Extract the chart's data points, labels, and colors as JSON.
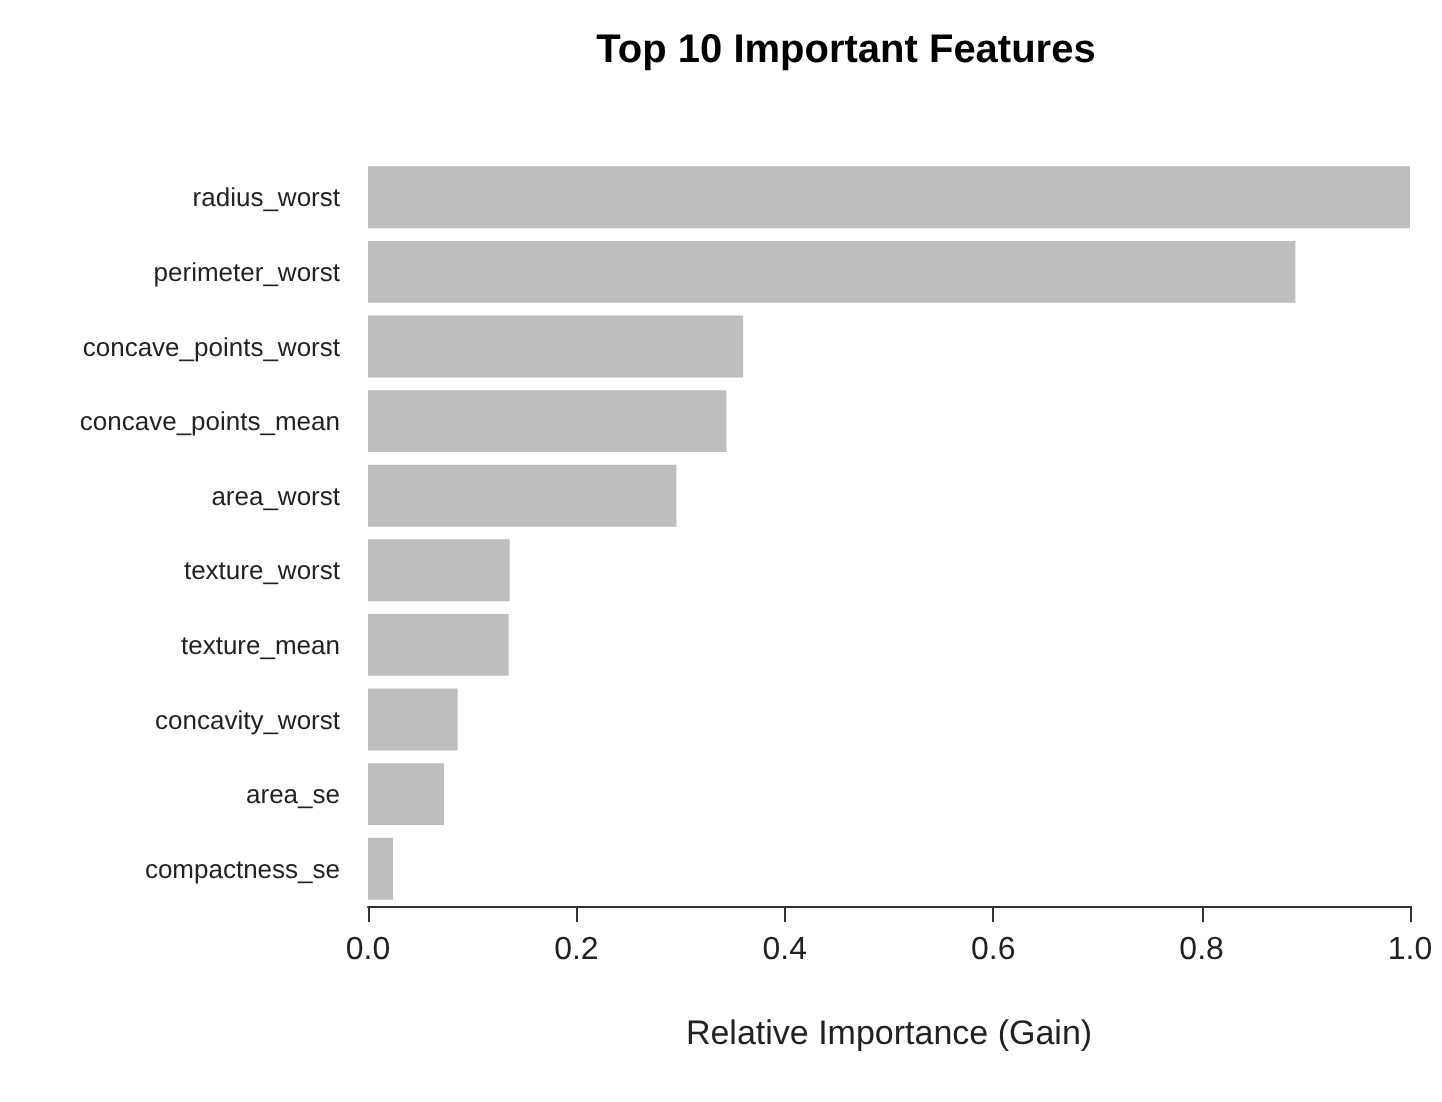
{
  "chart_data": {
    "type": "bar",
    "orientation": "horizontal",
    "title": "Top 10 Important Features",
    "xlabel": "Relative Importance (Gain)",
    "categories": [
      "radius_worst",
      "perimeter_worst",
      "concave_points_worst",
      "concave_points_mean",
      "area_worst",
      "texture_worst",
      "texture_mean",
      "concavity_worst",
      "area_se",
      "compactness_se"
    ],
    "values": [
      1.0,
      0.89,
      0.36,
      0.344,
      0.296,
      0.136,
      0.135,
      0.086,
      0.073,
      0.024
    ],
    "color": "#bebebe",
    "xlim": [
      0,
      1
    ],
    "xticks": [
      {
        "value": 0,
        "label": "0.0"
      },
      {
        "value": 0.2,
        "label": "0.2"
      },
      {
        "value": 0.4,
        "label": "0.4"
      },
      {
        "value": 0.6,
        "label": "0.6"
      },
      {
        "value": 0.8,
        "label": "0.8"
      },
      {
        "value": 1,
        "label": "1.0"
      }
    ],
    "grid": false
  }
}
